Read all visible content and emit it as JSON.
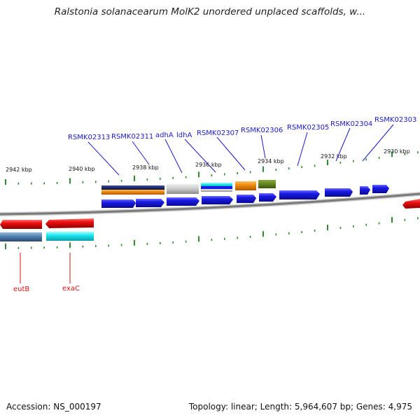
{
  "title": "Ralstonia solanacearum MolK2 unordered unplaced scaffolds, w...",
  "footer": {
    "accession": "Accession: NS_000197",
    "topology": "Topology: linear; Length: 5,964,607 bp; Genes: 4,975"
  },
  "kbp_labels": [
    "2942 kbp",
    "2940 kbp",
    "2938 kbp",
    "2936 kbp",
    "2934 kbp",
    "2932 kbp",
    "2930 kbp"
  ],
  "top_genes": [
    "RSMK02313",
    "RSMK02311",
    "adhA",
    "ldhA",
    "RSMK02307",
    "RSMK02306",
    "RSMK02305",
    "RSMK02304",
    "RSMK02303"
  ],
  "bottom_genes": [
    "eutB",
    "exaC"
  ],
  "colors": {
    "gene_blue": "#1a1ae6",
    "gene_red": "#ee1111",
    "label_blue": "#1a1acc",
    "label_red": "#dd1111",
    "tick_green": "#2e8b2e",
    "backbone_gray": "#8a8a8a",
    "navy": "#1a2a6a",
    "orange": "#f08c10",
    "light_gray": "#c8c8c8",
    "cyan": "#1ce6f0",
    "olive": "#5a7a1a",
    "steel_blue": "#4a7aa8"
  }
}
